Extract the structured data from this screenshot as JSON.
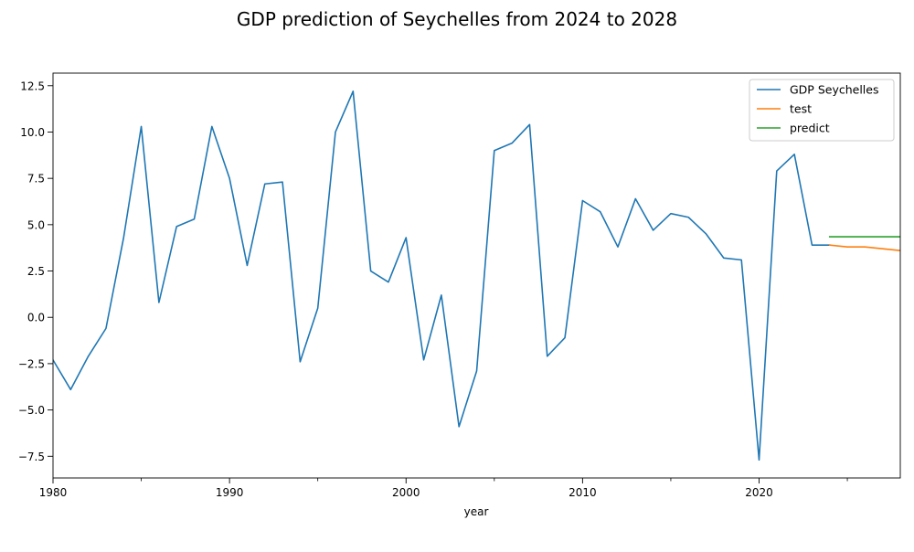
{
  "chart_data": {
    "type": "line",
    "title": "GDP prediction of Seychelles from 2024 to 2028",
    "xlabel": "year",
    "ylabel": "",
    "xlim": [
      1980,
      2028
    ],
    "ylim": [
      -8.67,
      13.18
    ],
    "x_ticks": [
      1980,
      1990,
      2000,
      2010,
      2020
    ],
    "y_ticks": [
      -7.5,
      -5.0,
      -2.5,
      0.0,
      2.5,
      5.0,
      7.5,
      10.0,
      12.5
    ],
    "y_tick_labels": [
      "−7.5",
      "−5.0",
      "−2.5",
      "0.0",
      "2.5",
      "5.0",
      "7.5",
      "10.0",
      "12.5"
    ],
    "grid": false,
    "legend_position": "top-right",
    "series": [
      {
        "name": "GDP Seychelles",
        "color": "#1f77b4",
        "x": [
          1980,
          1981,
          1982,
          1983,
          1984,
          1985,
          1986,
          1987,
          1988,
          1989,
          1990,
          1991,
          1992,
          1993,
          1994,
          1995,
          1996,
          1997,
          1998,
          1999,
          2000,
          2001,
          2002,
          2003,
          2004,
          2005,
          2006,
          2007,
          2008,
          2009,
          2010,
          2011,
          2012,
          2013,
          2014,
          2015,
          2016,
          2017,
          2018,
          2019,
          2020,
          2021,
          2022,
          2023,
          2024
        ],
        "values": [
          -2.3,
          -3.9,
          -2.1,
          -0.6,
          4.3,
          10.3,
          0.8,
          4.9,
          5.3,
          10.3,
          7.5,
          2.8,
          7.2,
          7.3,
          -2.4,
          0.5,
          10.0,
          12.2,
          2.5,
          1.9,
          4.3,
          -2.3,
          1.2,
          -5.9,
          -2.9,
          9.0,
          9.4,
          10.4,
          -2.1,
          -1.1,
          6.3,
          5.7,
          3.8,
          6.4,
          4.7,
          5.6,
          5.4,
          4.5,
          3.2,
          3.1,
          -7.7,
          7.9,
          8.8,
          3.9,
          3.9
        ]
      },
      {
        "name": "test",
        "color": "#ff7f0e",
        "x": [
          2024,
          2025,
          2026,
          2027,
          2028
        ],
        "values": [
          3.9,
          3.8,
          3.8,
          3.7,
          3.6
        ]
      },
      {
        "name": "predict",
        "color": "#2ca02c",
        "x": [
          2024,
          2025,
          2026,
          2027,
          2028
        ],
        "values": [
          4.35,
          4.35,
          4.35,
          4.35,
          4.35
        ]
      }
    ]
  }
}
